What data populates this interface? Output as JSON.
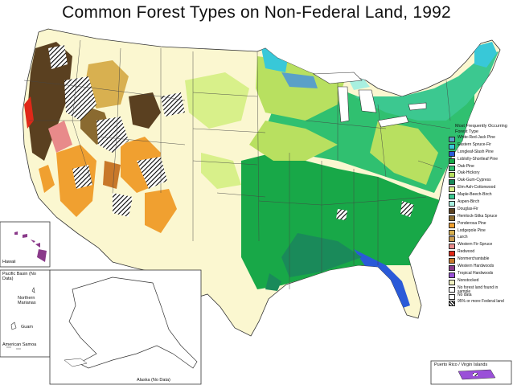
{
  "title": "Common Forest Types on Non-Federal Land, 1992",
  "legend": {
    "title": "Most Frequently Occurring Forest Type",
    "items": [
      {
        "label": "White-Red-Jack Pine",
        "color": "#5aa0c8"
      },
      {
        "label": "Eastern Spruce-Fir",
        "color": "#38c8d8"
      },
      {
        "label": "Longleaf-Slash Pine",
        "color": "#2a5ad8"
      },
      {
        "label": "Loblolly-Shortleaf Pine",
        "color": "#18a848"
      },
      {
        "label": "Oak-Pine",
        "color": "#30c070"
      },
      {
        "label": "Oak-Hickory",
        "color": "#b8e060"
      },
      {
        "label": "Oak-Gum-Cypress",
        "color": "#1a8a5a"
      },
      {
        "label": "Elm-Ash-Cottonwood",
        "color": "#d8f08a"
      },
      {
        "label": "Maple-Beech-Birch",
        "color": "#3cc890"
      },
      {
        "label": "Aspen-Birch",
        "color": "#a8f0e0"
      },
      {
        "label": "Douglas-Fir",
        "color": "#5a4020"
      },
      {
        "label": "Hemlock-Sitka Spruce",
        "color": "#8a6a30"
      },
      {
        "label": "Ponderosa Pine",
        "color": "#f0a030"
      },
      {
        "label": "Lodgepole Pine",
        "color": "#d8b050"
      },
      {
        "label": "Larch",
        "color": "#c89a50"
      },
      {
        "label": "Western Fir-Spruce",
        "color": "#e88a8a"
      },
      {
        "label": "Redwood",
        "color": "#e02818"
      },
      {
        "label": "Nonmerchantable",
        "color": "#c8782a"
      },
      {
        "label": "Western Hardwoods",
        "color": "#8a3a8a"
      },
      {
        "label": "Tropical Hardwoods",
        "color": "#9a50d8"
      },
      {
        "label": "Nonstocked",
        "color": "#f0f0c0"
      },
      {
        "label": "No forest land found in sample",
        "color": "#ffffff"
      },
      {
        "label": "No data",
        "color": "#ffffff"
      },
      {
        "label": "95% or more Federal land",
        "color": "#ffffff",
        "hatched": true
      }
    ]
  },
  "insets": {
    "hawaii": "Hawaii",
    "pacific_basin": "Pacific Basin (No Data)",
    "northern_marianas": "Northern Marianas",
    "guam": "Guam",
    "american_samoa": "American Samoa",
    "alaska": "Alaska (No Data)",
    "puerto_rico": "Puerto Rico / Virgin Islands"
  },
  "colors": {
    "non_forest": "#fbf7d0",
    "boundary": "#333333"
  }
}
